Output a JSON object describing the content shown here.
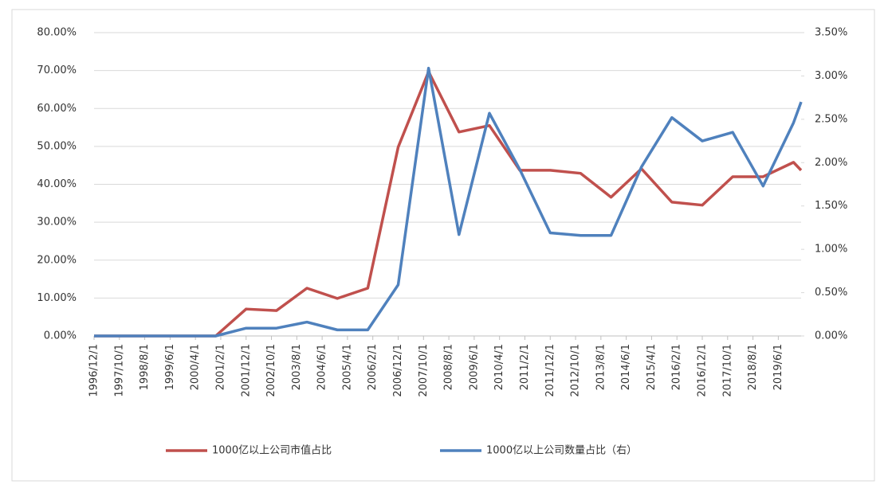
{
  "chart_data": {
    "type": "line",
    "x": [
      "1996/12/1",
      "1997/12/1",
      "1998/12/1",
      "1999/12/1",
      "2000/12/1",
      "2001/12/1",
      "2002/12/1",
      "2003/12/1",
      "2004/12/1",
      "2005/12/1",
      "2006/12/1",
      "2007/12/1",
      "2008/12/1",
      "2009/12/1",
      "2010/12/1",
      "2011/12/1",
      "2012/12/1",
      "2013/12/1",
      "2014/12/1",
      "2015/12/1",
      "2016/12/1",
      "2017/12/1",
      "2018/12/1",
      "2019/12/1",
      "2020/3/1"
    ],
    "xlim": [
      "1996/12/1",
      "2020/3/1"
    ],
    "xticks": [
      "1996/12/1",
      "1997/10/1",
      "1998/8/1",
      "1999/6/1",
      "2000/4/1",
      "2001/2/1",
      "2001/12/1",
      "2002/10/1",
      "2003/8/1",
      "2004/6/1",
      "2005/4/1",
      "2006/2/1",
      "2006/12/1",
      "2007/10/1",
      "2008/8/1",
      "2009/6/1",
      "2010/4/1",
      "2011/2/1",
      "2011/12/1",
      "2012/10/1",
      "2013/8/1",
      "2014/6/1",
      "2015/4/1",
      "2016/2/1",
      "2016/12/1",
      "2017/10/1",
      "2018/8/1",
      "2019/6/1"
    ],
    "series": [
      {
        "name": "1000亿以上公司市值占比",
        "color": "#c0504d",
        "axis": "y",
        "values": [
          0,
          0,
          0,
          0,
          0,
          7.1,
          6.7,
          12.6,
          9.9,
          12.6,
          49.8,
          69.7,
          53.8,
          55.5,
          43.7,
          43.7,
          42.9,
          36.6,
          44.1,
          35.3,
          34.5,
          42,
          42,
          45.8,
          43.7
        ]
      },
      {
        "name": "1000亿以上公司数量占比（右）",
        "color": "#4f81bd",
        "axis": "y2",
        "values": [
          0,
          0,
          0,
          0,
          0,
          0.09,
          0.09,
          0.16,
          0.07,
          0.07,
          0.59,
          3.09,
          1.17,
          2.57,
          1.92,
          1.19,
          1.16,
          1.16,
          1.95,
          2.52,
          2.25,
          2.35,
          1.73,
          2.46,
          2.7
        ]
      }
    ],
    "ylim": [
      0,
      80
    ],
    "yticks": [
      {
        "value": 0,
        "label": "0.00%"
      },
      {
        "value": 10,
        "label": "10.00%"
      },
      {
        "value": 20,
        "label": "20.00%"
      },
      {
        "value": 30,
        "label": "30.00%"
      },
      {
        "value": 40,
        "label": "40.00%"
      },
      {
        "value": 50,
        "label": "50.00%"
      },
      {
        "value": 60,
        "label": "60.00%"
      },
      {
        "value": 70,
        "label": "70.00%"
      },
      {
        "value": 80,
        "label": "80.00%"
      }
    ],
    "y2lim": [
      0,
      3.5
    ],
    "y2ticks": [
      {
        "value": 0,
        "label": "0.00%"
      },
      {
        "value": 0.5,
        "label": "0.50%"
      },
      {
        "value": 1,
        "label": "1.00%"
      },
      {
        "value": 1.5,
        "label": "1.50%"
      },
      {
        "value": 2,
        "label": "2.00%"
      },
      {
        "value": 2.5,
        "label": "2.50%"
      },
      {
        "value": 3,
        "label": "3.00%"
      },
      {
        "value": 3.5,
        "label": "3.50%"
      }
    ],
    "grid": true
  }
}
